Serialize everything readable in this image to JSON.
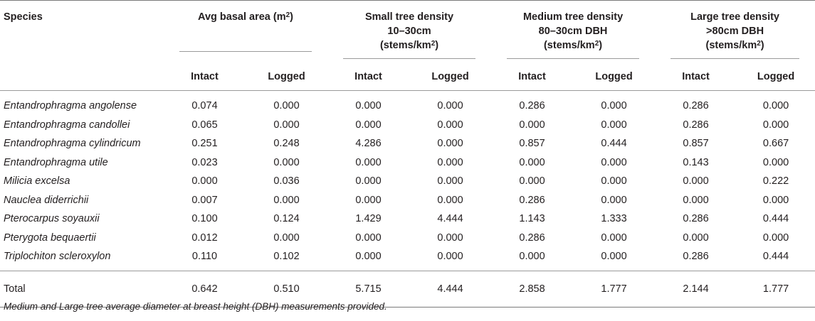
{
  "header": {
    "species": "Species",
    "basal_area": {
      "line1": "Avg basal area (m",
      "sup": "2",
      "line1_end": ")"
    },
    "small": {
      "line1": "Small tree density",
      "line2": "10–30cm",
      "line3": "(stems/km",
      "sup": "2",
      "line3_end": ")"
    },
    "medium": {
      "line1": "Medium tree density",
      "line2": "80–30cm DBH",
      "line3": "(stems/km",
      "sup": "2",
      "line3_end": ")"
    },
    "large": {
      "line1": "Large tree density",
      "line2": ">80cm DBH",
      "line3": "(stems/km",
      "sup": "2",
      "line3_end": ")"
    },
    "intact": "Intact",
    "logged": "Logged"
  },
  "rows": [
    {
      "species": "Entandrophragma angolense",
      "v": [
        "0.074",
        "0.000",
        "0.000",
        "0.000",
        "0.286",
        "0.000",
        "0.286",
        "0.000"
      ]
    },
    {
      "species": "Entandrophragma candollei",
      "v": [
        "0.065",
        "0.000",
        "0.000",
        "0.000",
        "0.000",
        "0.000",
        "0.286",
        "0.000"
      ]
    },
    {
      "species": "Entandrophragma cylindricum",
      "v": [
        "0.251",
        "0.248",
        "4.286",
        "0.000",
        "0.857",
        "0.444",
        "0.857",
        "0.667"
      ]
    },
    {
      "species": "Entandrophragma utile",
      "v": [
        "0.023",
        "0.000",
        "0.000",
        "0.000",
        "0.000",
        "0.000",
        "0.143",
        "0.000"
      ]
    },
    {
      "species": "Milicia excelsa",
      "v": [
        "0.000",
        "0.036",
        "0.000",
        "0.000",
        "0.000",
        "0.000",
        "0.000",
        "0.222"
      ]
    },
    {
      "species": "Nauclea diderrichii",
      "v": [
        "0.007",
        "0.000",
        "0.000",
        "0.000",
        "0.286",
        "0.000",
        "0.000",
        "0.000"
      ]
    },
    {
      "species": "Pterocarpus soyauxii",
      "v": [
        "0.100",
        "0.124",
        "1.429",
        "4.444",
        "1.143",
        "1.333",
        "0.286",
        "0.444"
      ]
    },
    {
      "species": "Pterygota bequaertii",
      "v": [
        "0.012",
        "0.000",
        "0.000",
        "0.000",
        "0.286",
        "0.000",
        "0.000",
        "0.000"
      ]
    },
    {
      "species": "Triplochiton scleroxylon",
      "v": [
        "0.110",
        "0.102",
        "0.000",
        "0.000",
        "0.000",
        "0.000",
        "0.286",
        "0.444"
      ]
    }
  ],
  "total": {
    "label": "Total",
    "v": [
      "0.642",
      "0.510",
      "5.715",
      "4.444",
      "2.858",
      "1.777",
      "2.144",
      "1.777"
    ]
  },
  "footnote": "Medium and Large tree average diameter at breast height (DBH) measurements provided."
}
